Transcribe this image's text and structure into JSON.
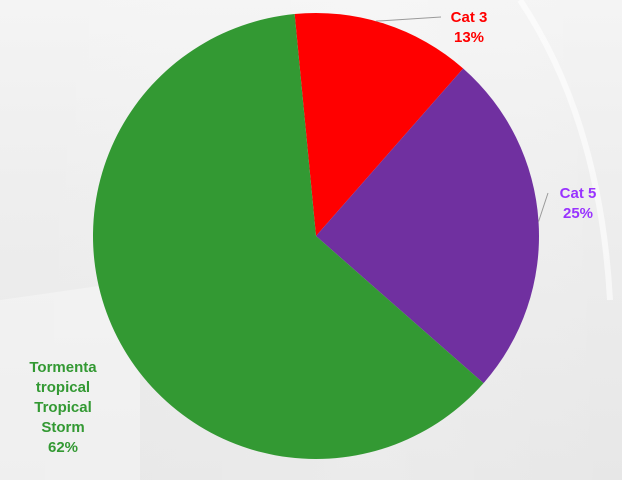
{
  "chart_data": {
    "type": "pie",
    "title": "",
    "slices": [
      {
        "label": "Cat 3",
        "lines": [
          "Cat 3"
        ],
        "pct_label": "13%",
        "value": 13,
        "color": "#ff0000",
        "label_color": "#ff0000"
      },
      {
        "label": "Cat 5",
        "lines": [
          "Cat 5"
        ],
        "pct_label": "25%",
        "value": 25,
        "color": "#7030a0",
        "label_color": "#9933ff"
      },
      {
        "label": "Tormenta tropical Tropical Storm",
        "lines": [
          "Tormenta",
          "tropical",
          "Tropical",
          "Storm"
        ],
        "pct_label": "62%",
        "value": 62,
        "color": "#339933",
        "label_color": "#339933"
      }
    ],
    "legend": "none",
    "labels_outside": true
  }
}
